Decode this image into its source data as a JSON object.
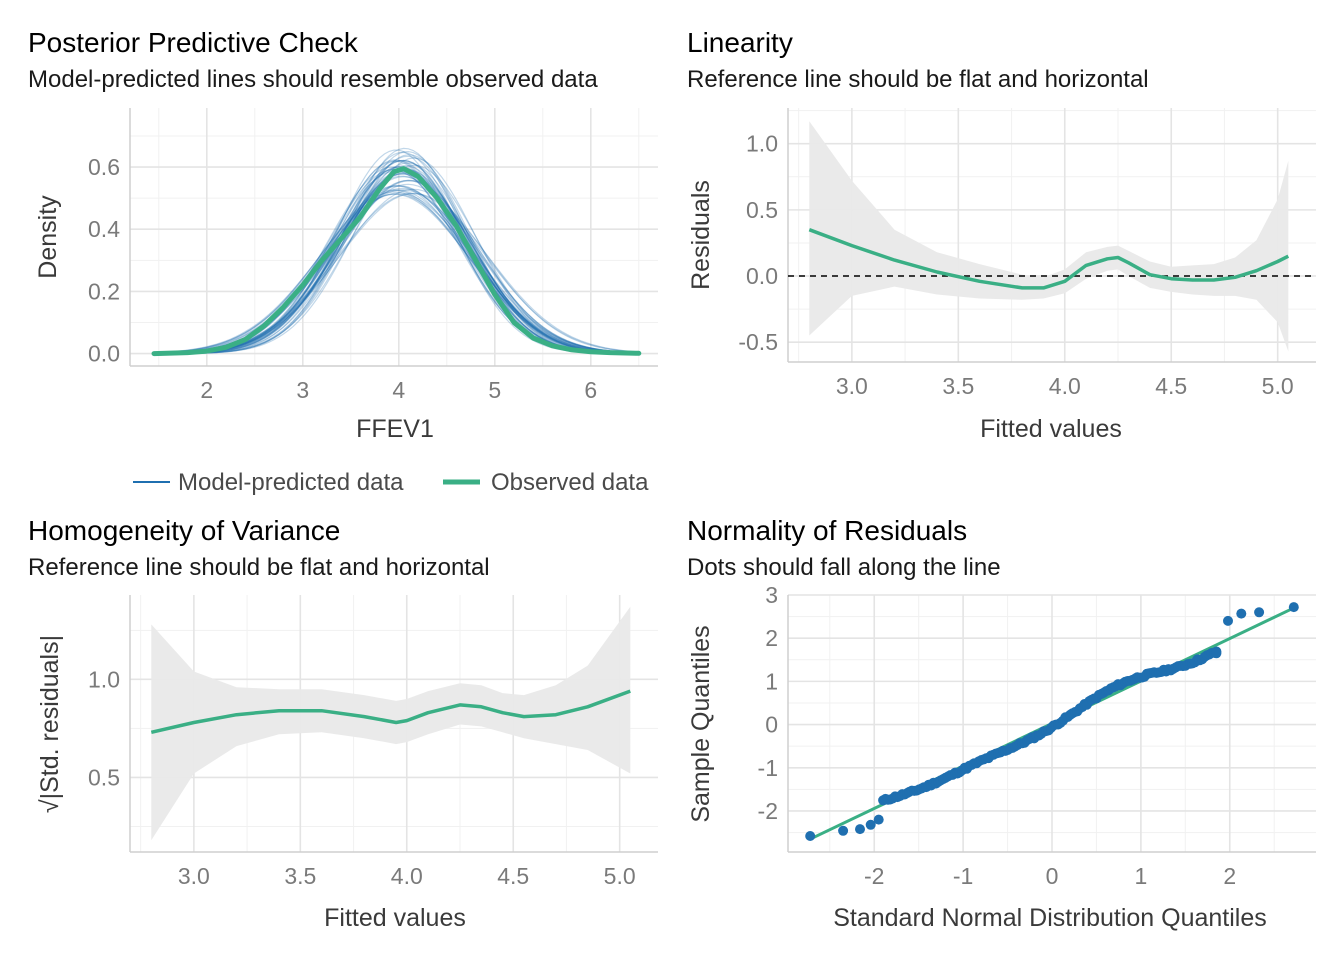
{
  "colors": {
    "observed": "#3aaf85",
    "predicted": "#1f6fb0",
    "band": "#e9e9e9",
    "points": "#1f6fb0",
    "reference": "#000000"
  },
  "legend": {
    "predicted_label": "Model-predicted data",
    "observed_label": "Observed data"
  },
  "chart_data": [
    {
      "id": "ppc",
      "type": "line",
      "title": "Posterior Predictive Check",
      "subtitle": "Model-predicted lines should resemble observed data",
      "xlabel": "FFEV1",
      "ylabel": "Density",
      "xlim": [
        1.2,
        6.7
      ],
      "ylim": [
        -0.04,
        0.79
      ],
      "x_ticks": [
        2,
        3,
        4,
        5,
        6
      ],
      "x_tick_labels": [
        "2",
        "3",
        "4",
        "5",
        "6"
      ],
      "y_ticks": [
        0.0,
        0.2,
        0.4,
        0.6
      ],
      "y_tick_labels": [
        "0.0",
        "0.2",
        "0.4",
        "0.6"
      ],
      "observed": {
        "name": "Observed data",
        "x": [
          1.45,
          1.8,
          2.0,
          2.2,
          2.4,
          2.6,
          2.8,
          3.0,
          3.2,
          3.4,
          3.6,
          3.8,
          3.95,
          4.05,
          4.2,
          4.4,
          4.6,
          4.8,
          5.0,
          5.2,
          5.4,
          5.6,
          5.8,
          6.0,
          6.2,
          6.5
        ],
        "y": [
          0.0,
          0.003,
          0.008,
          0.02,
          0.045,
          0.09,
          0.15,
          0.22,
          0.3,
          0.37,
          0.44,
          0.53,
          0.585,
          0.595,
          0.57,
          0.5,
          0.41,
          0.3,
          0.19,
          0.1,
          0.05,
          0.025,
          0.012,
          0.006,
          0.003,
          0.001
        ]
      },
      "predicted": {
        "name": "Model-predicted data",
        "draws": 50,
        "mean_range": [
          3.93,
          4.17
        ],
        "sd_range": [
          0.6,
          0.78
        ]
      }
    },
    {
      "id": "linearity",
      "type": "line",
      "title": "Linearity",
      "subtitle": "Reference line should be flat and horizontal",
      "xlabel": "Fitted values",
      "ylabel": "Residuals",
      "xlim": [
        2.7,
        5.18
      ],
      "ylim": [
        -0.65,
        1.27
      ],
      "x_ticks": [
        3.0,
        3.5,
        4.0,
        4.5,
        5.0
      ],
      "x_tick_labels": [
        "3.0",
        "3.5",
        "4.0",
        "4.5",
        "5.0"
      ],
      "y_ticks": [
        -0.5,
        0.0,
        0.5,
        1.0
      ],
      "y_tick_labels": [
        "-0.5",
        "0.0",
        "0.5",
        "1.0"
      ],
      "reference_y": 0.0,
      "x": [
        2.8,
        3.0,
        3.2,
        3.4,
        3.6,
        3.8,
        3.9,
        4.0,
        4.1,
        4.2,
        4.25,
        4.3,
        4.4,
        4.5,
        4.6,
        4.7,
        4.8,
        4.9,
        5.0,
        5.05
      ],
      "y": [
        0.35,
        0.23,
        0.12,
        0.03,
        -0.04,
        -0.09,
        -0.09,
        -0.04,
        0.08,
        0.13,
        0.14,
        0.1,
        0.01,
        -0.02,
        -0.03,
        -0.03,
        -0.01,
        0.04,
        0.11,
        0.15
      ],
      "lower": [
        -0.45,
        -0.15,
        -0.08,
        -0.14,
        -0.17,
        -0.18,
        -0.17,
        -0.13,
        -0.02,
        0.04,
        0.05,
        0.0,
        -0.09,
        -0.12,
        -0.14,
        -0.15,
        -0.15,
        -0.18,
        -0.35,
        -0.57
      ],
      "upper": [
        1.17,
        0.72,
        0.35,
        0.18,
        0.09,
        0.01,
        -0.01,
        0.05,
        0.18,
        0.22,
        0.23,
        0.19,
        0.11,
        0.07,
        0.08,
        0.09,
        0.14,
        0.27,
        0.58,
        0.87
      ]
    },
    {
      "id": "homogeneity",
      "type": "line",
      "title": "Homogeneity of Variance",
      "subtitle": "Reference line should be flat and horizontal",
      "xlabel": "Fitted values",
      "ylabel": "√|Std. residuals|",
      "xlim": [
        2.7,
        5.18
      ],
      "ylim": [
        0.12,
        1.43
      ],
      "x_ticks": [
        3.0,
        3.5,
        4.0,
        4.5,
        5.0
      ],
      "x_tick_labels": [
        "3.0",
        "3.5",
        "4.0",
        "4.5",
        "5.0"
      ],
      "y_ticks": [
        0.5,
        1.0
      ],
      "y_tick_labels": [
        "0.5",
        "1.0"
      ],
      "x": [
        2.8,
        3.0,
        3.2,
        3.4,
        3.6,
        3.8,
        3.95,
        4.0,
        4.1,
        4.25,
        4.35,
        4.45,
        4.55,
        4.7,
        4.85,
        5.05
      ],
      "y": [
        0.73,
        0.78,
        0.82,
        0.84,
        0.84,
        0.81,
        0.78,
        0.79,
        0.83,
        0.87,
        0.86,
        0.83,
        0.81,
        0.82,
        0.86,
        0.94
      ],
      "lower": [
        0.18,
        0.52,
        0.66,
        0.72,
        0.73,
        0.7,
        0.67,
        0.68,
        0.72,
        0.77,
        0.76,
        0.73,
        0.7,
        0.67,
        0.64,
        0.52
      ],
      "upper": [
        1.28,
        1.04,
        0.96,
        0.95,
        0.95,
        0.92,
        0.89,
        0.9,
        0.94,
        0.98,
        0.97,
        0.93,
        0.92,
        0.97,
        1.07,
        1.37
      ]
    },
    {
      "id": "normality",
      "type": "scatter",
      "title": "Normality of Residuals",
      "subtitle": "Dots should fall along the line",
      "xlabel": "Standard Normal Distribution Quantiles",
      "ylabel": "Sample Quantiles",
      "xlim": [
        -2.97,
        2.97
      ],
      "ylim": [
        -2.95,
        3.0
      ],
      "x_ticks": [
        -2,
        -1,
        0,
        1,
        2
      ],
      "x_tick_labels": [
        "-2",
        "-1",
        "0",
        "1",
        "2"
      ],
      "y_ticks": [
        -2,
        -1,
        0,
        1,
        2,
        3
      ],
      "y_tick_labels": [
        "-2",
        "-1",
        "0",
        "1",
        "2",
        "3"
      ],
      "reference_line": {
        "x": [
          -2.72,
          2.72
        ],
        "y": [
          -2.65,
          2.7
        ]
      },
      "point_count": 140,
      "points_x_range": [
        -2.72,
        2.72
      ],
      "outliers": {
        "x": [
          -2.72,
          -2.35,
          -2.16,
          -2.04,
          -1.95,
          1.85,
          1.98,
          2.13,
          2.33,
          2.72
        ],
        "y": [
          -2.58,
          -2.46,
          -2.42,
          -2.32,
          -2.2,
          1.65,
          2.4,
          2.57,
          2.6,
          2.72
        ]
      }
    }
  ]
}
